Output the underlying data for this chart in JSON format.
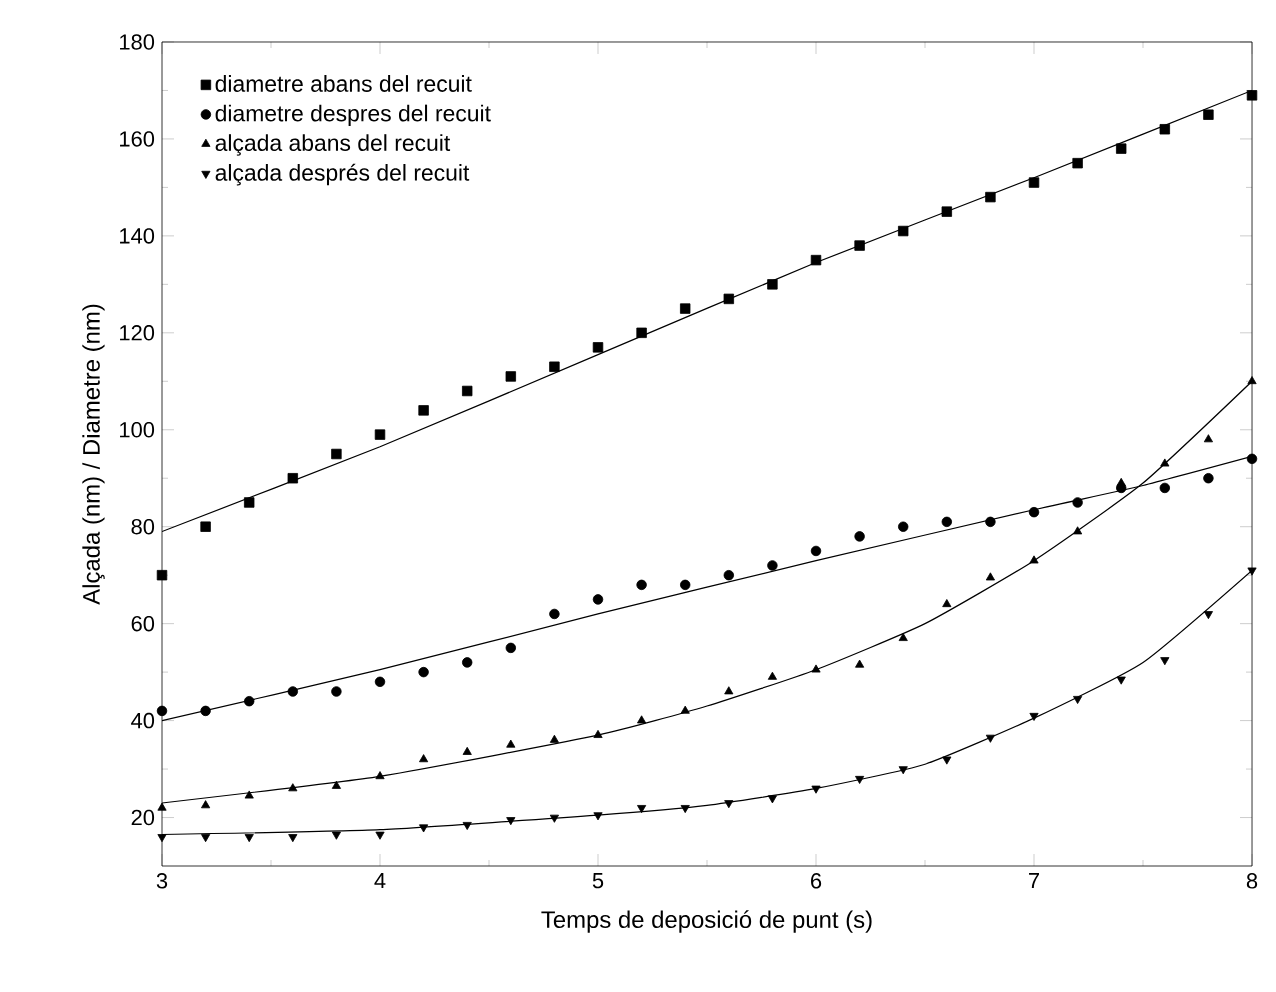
{
  "chart_data": {
    "type": "scatter",
    "xlabel": "Temps de deposició de punt  (s)",
    "ylabel": "Alçada (nm) / Diametre (nm)",
    "xlim": [
      3,
      8
    ],
    "ylim": [
      10,
      180
    ],
    "xticks": [
      3,
      4,
      5,
      6,
      7,
      8
    ],
    "yticks": [
      20,
      40,
      60,
      80,
      100,
      120,
      140,
      160,
      180
    ],
    "legend": "top left",
    "grid": false,
    "series": [
      {
        "name": "diametre abans del recuit",
        "color": "#000000",
        "marker": "square",
        "x": [
          3,
          3.2,
          3.4,
          3.6,
          3.8,
          4,
          4.2,
          4.4,
          4.6,
          4.8,
          5,
          5.2,
          5.4,
          5.6,
          5.8,
          6,
          6.2,
          6.4,
          6.6,
          6.8,
          7,
          7.2,
          7.4,
          7.6,
          7.8,
          8
        ],
        "values": [
          70,
          80,
          85,
          90,
          95,
          99,
          104,
          108,
          111,
          113,
          117,
          120,
          125,
          127,
          130,
          135,
          138,
          141,
          145,
          148,
          151,
          155,
          158,
          162,
          165,
          169
        ]
      },
      {
        "name": "diametre despres del recuit",
        "color": "#000000",
        "marker": "circle",
        "x": [
          3,
          3.2,
          3.4,
          3.6,
          3.8,
          4,
          4.2,
          4.4,
          4.6,
          4.8,
          5,
          5.2,
          5.4,
          5.6,
          5.8,
          6,
          6.2,
          6.4,
          6.6,
          6.8,
          7,
          7.2,
          7.4,
          7.6,
          7.8,
          8
        ],
        "values": [
          42,
          42,
          44,
          46,
          46,
          48,
          50,
          52,
          55,
          62,
          65,
          68,
          68,
          70,
          72,
          75,
          78,
          80,
          81,
          81,
          83,
          85,
          88,
          88,
          90,
          94
        ]
      },
      {
        "name": "alçada abans del recuit",
        "color": "#000000",
        "marker": "triangle",
        "x": [
          3,
          3.2,
          3.4,
          3.6,
          3.8,
          4,
          4.2,
          4.4,
          4.6,
          4.8,
          5,
          5.2,
          5.4,
          5.6,
          5.8,
          6,
          6.2,
          6.4,
          6.6,
          6.8,
          7,
          7.2,
          7.4,
          7.6,
          7.8,
          8
        ],
        "values": [
          22,
          22.5,
          24.5,
          26,
          26.5,
          28.5,
          32,
          33.5,
          35,
          36,
          37,
          40,
          42,
          46,
          49,
          50.5,
          51.5,
          57,
          64,
          69.5,
          73,
          79,
          89,
          93,
          98,
          110
        ]
      },
      {
        "name": "alçada després del recuit",
        "color": "#000000",
        "marker": "triangle-down",
        "x": [
          3,
          3.2,
          3.4,
          3.6,
          3.8,
          4,
          4.2,
          4.4,
          4.6,
          4.8,
          5,
          5.2,
          5.4,
          5.6,
          5.8,
          6,
          6.2,
          6.4,
          6.6,
          6.8,
          7,
          7.2,
          7.4,
          7.6,
          7.8,
          8
        ],
        "values": [
          16,
          16,
          16,
          16,
          16.5,
          16.5,
          18,
          18.5,
          19.5,
          20,
          20.5,
          22,
          22,
          23,
          24,
          26,
          28,
          30,
          32,
          36.5,
          41,
          44.5,
          48.5,
          52.5,
          62,
          71
        ]
      },
      {
        "type": "line",
        "color": "#000000",
        "marker": "none",
        "x": [
          3,
          4,
          5,
          6,
          7,
          8
        ],
        "values": [
          79,
          96.5,
          115.5,
          134.5,
          152,
          170
        ]
      },
      {
        "type": "line",
        "color": "#000000",
        "marker": "none",
        "x": [
          3,
          4,
          5,
          6,
          7,
          7.5,
          8
        ],
        "values": [
          40,
          50.5,
          62,
          73,
          83.5,
          88.5,
          94.5
        ]
      },
      {
        "type": "line",
        "color": "#000000",
        "marker": "none",
        "x": [
          3,
          4,
          5,
          5.5,
          6,
          6.5,
          7,
          7.5,
          8
        ],
        "values": [
          23,
          28.5,
          37,
          43,
          50.5,
          60,
          73,
          89,
          110
        ]
      },
      {
        "type": "line",
        "color": "#000000",
        "marker": "none",
        "x": [
          3,
          4,
          5,
          5.5,
          6,
          6.5,
          7,
          7.5,
          8
        ],
        "values": [
          16.5,
          17.5,
          20.5,
          22.5,
          26,
          31,
          40.5,
          52,
          71
        ]
      }
    ]
  }
}
